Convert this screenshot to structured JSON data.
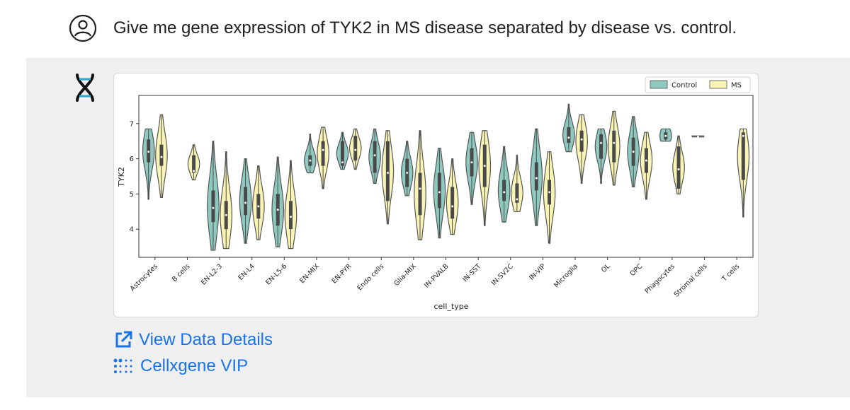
{
  "prompt": {
    "text": "Give me gene expression of TYK2 in MS disease separated by disease vs. control."
  },
  "icons": {
    "user": "user-circle-icon",
    "assistant": "dna-helix-icon",
    "external_link": "external-link-icon",
    "cellxgene": "dot-grid-icon"
  },
  "colors": {
    "control": "#8ec9c0",
    "ms": "#f9f4b4",
    "link": "#1a73e8",
    "panel_bg": "#efefef"
  },
  "links": {
    "view_data": "View Data Details",
    "cellxgene": "Cellxgene VIP"
  },
  "chart_data": {
    "type": "violin",
    "title": "",
    "xlabel": "cell_type",
    "ylabel": "TYK2",
    "ylim": [
      3.2,
      7.8
    ],
    "yticks": [
      4,
      5,
      6,
      7
    ],
    "legend": {
      "position": "top-right",
      "entries": [
        "Control",
        "MS"
      ]
    },
    "categories": [
      "Astrocytes",
      "B cells",
      "EN-L2-3",
      "EN-L4",
      "EN-L5-6",
      "EN-MIX",
      "EN-PYR",
      "Endo cells",
      "Glia-MIX",
      "IN-PVALB",
      "IN-SST",
      "IN-SV2C",
      "IN-VIP",
      "Microglia",
      "OL",
      "OPC",
      "Phagocytes",
      "Stromal cells",
      "T cells"
    ],
    "series": [
      {
        "name": "Control",
        "violins": [
          {
            "min": 4.85,
            "max": 6.85,
            "q1": 5.9,
            "q3": 6.55,
            "median": 6.2
          },
          null,
          {
            "min": 3.4,
            "max": 6.5,
            "q1": 4.2,
            "q3": 5.1,
            "median": 4.6
          },
          {
            "min": 3.6,
            "max": 6.0,
            "q1": 4.4,
            "q3": 5.2,
            "median": 4.75
          },
          {
            "min": 3.5,
            "max": 6.05,
            "q1": 4.1,
            "q3": 5.0,
            "median": 4.55
          },
          {
            "min": 5.6,
            "max": 6.7,
            "q1": 5.8,
            "q3": 6.1,
            "median": 5.95
          },
          {
            "min": 5.7,
            "max": 6.75,
            "q1": 5.8,
            "q3": 6.5,
            "median": 5.9
          },
          {
            "min": 5.3,
            "max": 6.85,
            "q1": 5.6,
            "q3": 6.5,
            "median": 6.1
          },
          {
            "min": 4.95,
            "max": 6.5,
            "q1": 5.2,
            "q3": 6.0,
            "median": 5.6
          },
          {
            "min": 3.75,
            "max": 6.3,
            "q1": 4.6,
            "q3": 5.6,
            "median": 5.05
          },
          {
            "min": 4.7,
            "max": 6.75,
            "q1": 5.5,
            "q3": 6.3,
            "median": 5.9
          },
          {
            "min": 4.2,
            "max": 6.35,
            "q1": 4.8,
            "q3": 5.4,
            "median": 5.05
          },
          {
            "min": 4.1,
            "max": 6.85,
            "q1": 5.1,
            "q3": 5.9,
            "median": 5.45
          },
          {
            "min": 6.2,
            "max": 7.55,
            "q1": 6.45,
            "q3": 6.9,
            "median": 6.6
          },
          {
            "min": 5.3,
            "max": 6.85,
            "q1": 6.0,
            "q3": 6.7,
            "median": 6.45
          },
          {
            "min": 5.2,
            "max": 7.2,
            "q1": 5.8,
            "q3": 6.6,
            "median": 6.2
          },
          {
            "min": 6.5,
            "max": 6.85,
            "q1": 6.55,
            "q3": 6.75,
            "median": 6.65
          },
          {
            "min": 6.62,
            "max": 6.65,
            "q1": 6.63,
            "q3": 6.64,
            "median": 6.63
          },
          null
        ]
      },
      {
        "name": "MS",
        "violins": [
          {
            "min": 4.9,
            "max": 7.25,
            "q1": 5.8,
            "q3": 6.4,
            "median": 6.05
          },
          {
            "min": 5.4,
            "max": 6.4,
            "q1": 5.6,
            "q3": 6.1,
            "median": 5.65
          },
          {
            "min": 3.45,
            "max": 6.2,
            "q1": 4.0,
            "q3": 4.8,
            "median": 4.4
          },
          {
            "min": 3.7,
            "max": 5.8,
            "q1": 4.3,
            "q3": 5.0,
            "median": 4.65
          },
          {
            "min": 3.45,
            "max": 5.95,
            "q1": 4.0,
            "q3": 4.8,
            "median": 4.35
          },
          {
            "min": 5.15,
            "max": 6.9,
            "q1": 5.8,
            "q3": 6.5,
            "median": 6.25
          },
          {
            "min": 5.7,
            "max": 6.85,
            "q1": 5.95,
            "q3": 6.65,
            "median": 6.25
          },
          {
            "min": 4.15,
            "max": 6.8,
            "q1": 4.8,
            "q3": 6.5,
            "median": 5.6
          },
          {
            "min": 3.7,
            "max": 6.8,
            "q1": 4.4,
            "q3": 5.6,
            "median": 5.15
          },
          {
            "min": 3.85,
            "max": 6.0,
            "q1": 4.3,
            "q3": 5.2,
            "median": 4.65
          },
          {
            "min": 4.1,
            "max": 6.8,
            "q1": 5.2,
            "q3": 6.4,
            "median": 5.8
          },
          {
            "min": 4.5,
            "max": 6.1,
            "q1": 4.75,
            "q3": 5.3,
            "median": 4.85
          },
          {
            "min": 3.6,
            "max": 6.2,
            "q1": 4.7,
            "q3": 5.4,
            "median": 5.05
          },
          {
            "min": 5.3,
            "max": 7.25,
            "q1": 6.2,
            "q3": 6.8,
            "median": 6.55
          },
          {
            "min": 5.25,
            "max": 7.35,
            "q1": 5.9,
            "q3": 6.8,
            "median": 6.45
          },
          {
            "min": 4.85,
            "max": 6.75,
            "q1": 5.6,
            "q3": 6.3,
            "median": 5.95
          },
          {
            "min": 5.0,
            "max": 6.65,
            "q1": 5.15,
            "q3": 6.35,
            "median": 5.7
          },
          null,
          {
            "min": 4.35,
            "max": 6.85,
            "q1": 5.4,
            "q3": 6.75,
            "median": 6.65
          }
        ]
      }
    ]
  }
}
